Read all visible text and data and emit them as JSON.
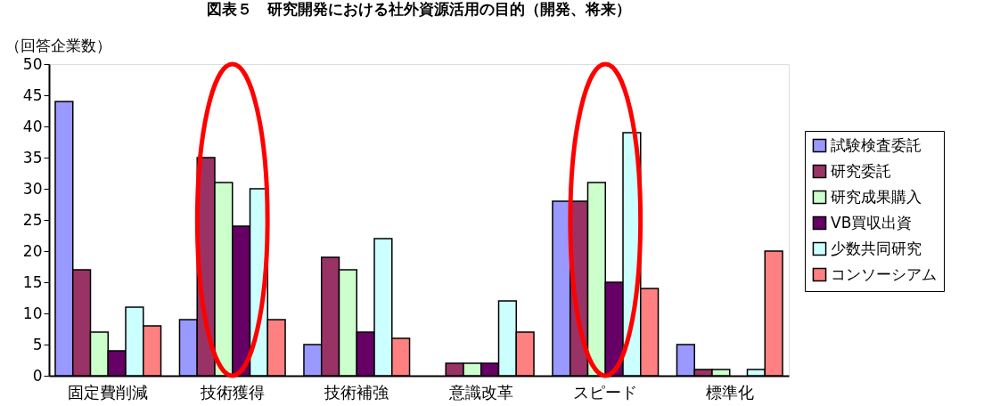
{
  "chart_data": {
    "type": "bar",
    "title": "図表５　研究開発における社外資源活用の目的（開発、将来）",
    "ylabel": "（回答企業数）",
    "categories": [
      "固定費削減",
      "技術獲得",
      "技術補強",
      "意識改革",
      "スピード",
      "標準化"
    ],
    "series": [
      {
        "name": "試験検査委託",
        "color": "#9999ff",
        "values": [
          44,
          9,
          5,
          0,
          28,
          5
        ]
      },
      {
        "name": "研究委託",
        "color": "#993366",
        "values": [
          17,
          35,
          19,
          2,
          28,
          1
        ]
      },
      {
        "name": "研究成果購入",
        "color": "#ccffcc",
        "values": [
          7,
          31,
          17,
          2,
          31,
          1
        ]
      },
      {
        "name": "VB買収出資",
        "color": "#660066",
        "values": [
          4,
          24,
          7,
          2,
          15,
          0
        ]
      },
      {
        "name": "少数共同研究",
        "color": "#ccffff",
        "values": [
          11,
          30,
          22,
          12,
          39,
          1
        ]
      },
      {
        "name": "コンソーシアム",
        "color": "#ff8080",
        "values": [
          8,
          9,
          6,
          7,
          14,
          20
        ]
      }
    ],
    "ylim": [
      0,
      50
    ],
    "yticks": [
      0,
      5,
      10,
      15,
      20,
      25,
      30,
      35,
      40,
      45,
      50
    ],
    "grid": false,
    "legend": "right"
  }
}
